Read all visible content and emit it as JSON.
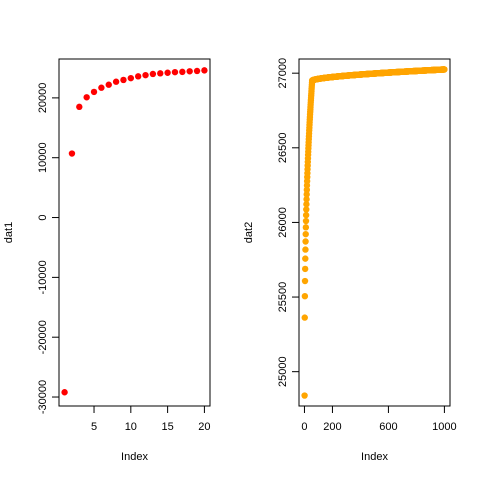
{
  "chart_data": [
    {
      "type": "scatter",
      "xlabel": "Index",
      "ylabel": "dat1",
      "xlim": [
        0.24,
        20.76
      ],
      "ylim": [
        -31500,
        26500
      ],
      "xticks": [
        5,
        10,
        15,
        20
      ],
      "yticks": [
        -30000,
        -20000,
        -10000,
        0,
        10000,
        20000
      ],
      "color": "#ff0000",
      "x": [
        1,
        2,
        3,
        4,
        5,
        6,
        7,
        8,
        9,
        10,
        11,
        12,
        13,
        14,
        15,
        16,
        17,
        18,
        19,
        20
      ],
      "y": [
        -29200,
        10700,
        18500,
        20100,
        21000,
        21700,
        22200,
        22700,
        23000,
        23300,
        23600,
        23800,
        24000,
        24100,
        24200,
        24300,
        24350,
        24450,
        24500,
        24600
      ]
    },
    {
      "type": "scatter",
      "xlabel": "Index",
      "ylabel": "dat2",
      "xlim": [
        -39,
        1040
      ],
      "ylim": [
        24770,
        27095
      ],
      "xticks": [
        0,
        200,
        600,
        1000
      ],
      "yticks": [
        25000,
        25500,
        26000,
        26500,
        27000
      ],
      "color": "#ffa500",
      "curve": {
        "n": 1000,
        "start": 24840,
        "end": 27025,
        "knee_index": 55,
        "knee_value": 26950
      }
    }
  ]
}
